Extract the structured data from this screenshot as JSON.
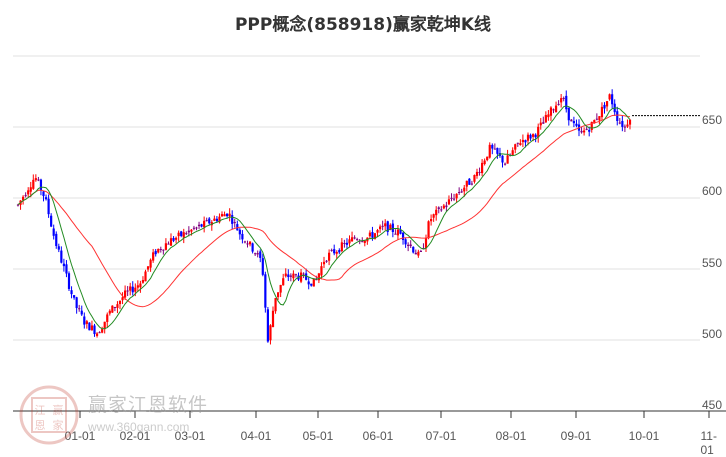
{
  "title": "PPP概念(858918)赢家乾坤K线",
  "watermark": {
    "brand": "赢家江恩软件",
    "url": "www.360gann.com",
    "seal": [
      "江",
      "赢",
      "恩",
      "家"
    ]
  },
  "colors": {
    "up": "#ff0000",
    "down": "#0000ff",
    "neutral": "#800080",
    "ma_short": "#228b22",
    "ma_long": "#ff3333",
    "grid": "#e0e0e0",
    "axis": "#333333",
    "last_price_line": "#000000"
  },
  "chart_data": {
    "type": "candlestick",
    "title": "PPP概念(858918)赢家乾坤K线",
    "xlabel": "",
    "ylabel": "",
    "ylim": [
      450,
      700
    ],
    "yticks": [
      450,
      500,
      550,
      600,
      650
    ],
    "xticks": [
      "01-01",
      "02-01",
      "03-01",
      "04-01",
      "05-01",
      "06-01",
      "07-01",
      "08-01",
      "09-01",
      "10-01",
      "11-01"
    ],
    "grid": true,
    "legend": "none",
    "last_price": 658,
    "approx_closes_by_month": {
      "12-mid": 595,
      "12-end": 612,
      "01-01": 580,
      "01-mid": 535,
      "01-end": 502,
      "02-01": 528,
      "02-mid": 565,
      "03-01": 575,
      "03-mid": 590,
      "03-end": 570,
      "04-01": 560,
      "04-05": 495,
      "04-15": 530,
      "05-01": 540,
      "05-mid": 565,
      "06-01": 580,
      "06-mid": 575,
      "06-end": 560,
      "07-01": 585,
      "07-mid": 610,
      "08-01": 620,
      "08-mid": 640,
      "09-01": 670,
      "09-mid": 650,
      "09-end": 672,
      "10-01": 658
    },
    "series": [
      {
        "name": "MA-short",
        "color": "#228b22"
      },
      {
        "name": "MA-long",
        "color": "#ff3333"
      }
    ]
  },
  "y_axis": {
    "labels": [
      "650",
      "600",
      "550",
      "500",
      "450"
    ]
  },
  "x_axis": {
    "labels": [
      "01-01",
      "02-01",
      "03-01",
      "04-01",
      "05-01",
      "06-01",
      "07-01",
      "08-01",
      "09-01",
      "10-01",
      "11-01"
    ]
  }
}
